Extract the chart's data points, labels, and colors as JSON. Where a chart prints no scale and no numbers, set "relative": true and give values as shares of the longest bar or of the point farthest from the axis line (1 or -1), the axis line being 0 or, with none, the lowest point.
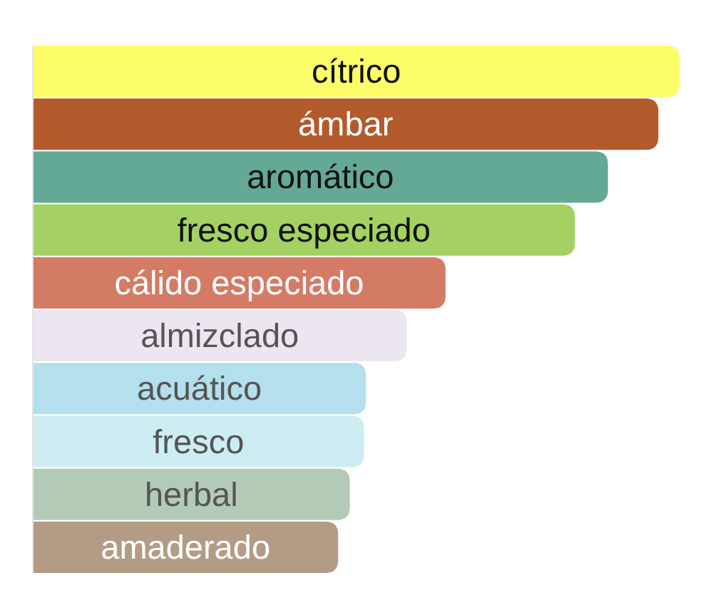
{
  "chart_data": {
    "type": "bar",
    "orientation": "horizontal",
    "relative": true,
    "categories": [
      "cítrico",
      "ámbar",
      "aromático",
      "fresco especiado",
      "cálido especiado",
      "almizclado",
      "acuático",
      "fresco",
      "herbal",
      "amaderado"
    ],
    "values": [
      1,
      0.967,
      0.889,
      0.838,
      0.638,
      0.578,
      0.515,
      0.512,
      0.49,
      0.472
    ],
    "colors": [
      "#fdfd6a",
      "#b35a2d",
      "#64a896",
      "#a3d163",
      "#d47b65",
      "#ece6f0",
      "#b3e0ec",
      "#cdedf2",
      "#b3cbb6",
      "#b39b86"
    ]
  }
}
